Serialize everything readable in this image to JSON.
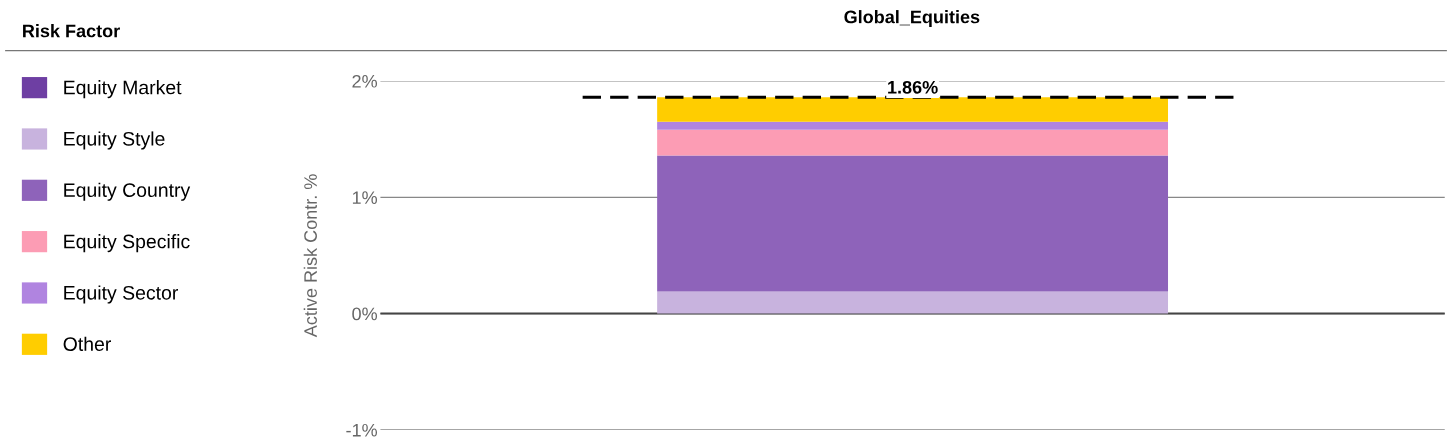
{
  "chart_data": {
    "type": "bar",
    "stacked": true,
    "title": "Global_Equities",
    "ylabel": "Active Risk Contr. %",
    "legend_title": "Risk Factor",
    "legend": "left",
    "categories": [
      null
    ],
    "series": [
      {
        "name": "Equity Market",
        "color": "#6e3fa3",
        "values": [
          0
        ]
      },
      {
        "name": "Equity Style",
        "color": "#c8b3de",
        "values": [
          0.19
        ]
      },
      {
        "name": "Equity Country",
        "color": "#8e63ba",
        "values": [
          1.17
        ]
      },
      {
        "name": "Equity Specific",
        "color": "#fc9cb4",
        "values": [
          0.22
        ]
      },
      {
        "name": "Equity Sector",
        "color": "#b084e0",
        "values": [
          0.07
        ]
      },
      {
        "name": "Other",
        "color": "#ffcd00",
        "values": [
          0.21
        ]
      }
    ],
    "ylim": [
      -1,
      2
    ],
    "yticks": [
      {
        "value": -1,
        "label": "-1%"
      },
      {
        "value": 0,
        "label": "0%"
      },
      {
        "value": 1,
        "label": "1%"
      },
      {
        "value": 2,
        "label": "2%"
      }
    ],
    "grid": "y",
    "ref_lines": [
      {
        "axis": "y",
        "value": 1.86,
        "label": "1.86%",
        "color": "#000000",
        "line_style": "dashed"
      }
    ]
  }
}
